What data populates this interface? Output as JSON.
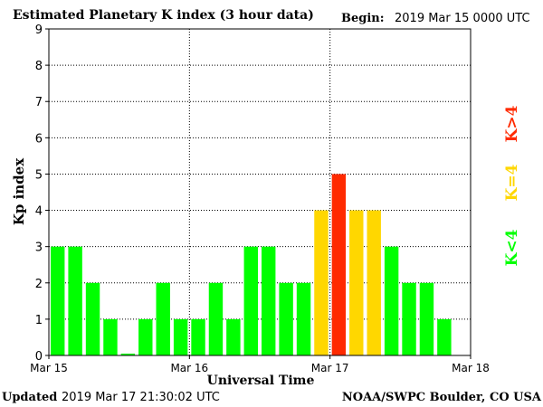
{
  "header": {
    "title": "Estimated Planetary K index (3 hour data)",
    "begin_label": "Begin:",
    "begin_value": "2019 Mar 15 0000 UTC"
  },
  "footer": {
    "updated_label": "Updated",
    "updated_value": "2019 Mar 17 21:30:02 UTC",
    "source": "NOAA/SWPC Boulder, CO USA"
  },
  "legend": [
    {
      "label": "K>4",
      "color": "#ff2a00"
    },
    {
      "label": "K=4",
      "color": "#ffd700"
    },
    {
      "label": "K<4",
      "color": "#00ff00"
    }
  ],
  "chart_data": {
    "type": "bar",
    "title": "Estimated Planetary K index (3 hour data)",
    "xlabel": "Universal Time",
    "ylabel": "Kp index",
    "ylim": [
      0,
      9
    ],
    "yticks": [
      "0",
      "1",
      "2",
      "3",
      "4",
      "5",
      "6",
      "7",
      "8",
      "9"
    ],
    "xticks": [
      "Mar 15",
      "Mar 16",
      "Mar 17",
      "Mar 18"
    ],
    "bars_per_day": 8,
    "grid": true,
    "values": [
      3,
      3,
      2,
      1,
      0.05,
      1,
      2,
      1,
      1,
      2,
      1,
      3,
      3,
      2,
      2,
      4,
      5,
      4,
      4,
      3,
      2,
      2,
      1
    ],
    "colors": {
      "below_4": "#00ff00",
      "equal_4": "#ffd700",
      "above_4": "#ff2a00"
    }
  }
}
